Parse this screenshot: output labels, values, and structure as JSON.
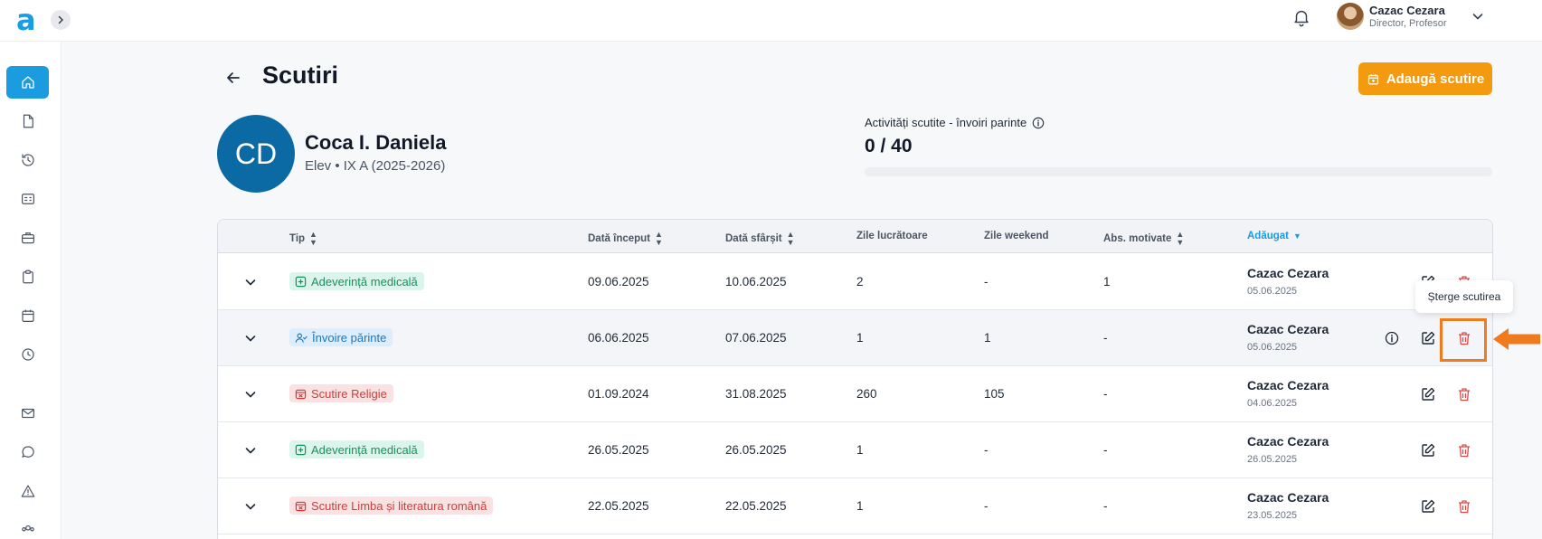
{
  "app": {
    "logo_text": "a"
  },
  "header": {
    "user_name": "Cazac Cezara",
    "user_role": "Director, Profesor"
  },
  "page": {
    "title": "Scutiri",
    "add_button_label": "Adaugă scutire"
  },
  "student": {
    "initials": "CD",
    "name": "Coca I. Daniela",
    "meta": "Elev • IX A (2025-2026)"
  },
  "quota": {
    "label": "Activități scutite - învoiri parinte",
    "value_text": "0 / 40",
    "fraction": 0
  },
  "table": {
    "columns": {
      "type": "Tip",
      "start": "Dată început",
      "end": "Dată sfârșit",
      "workdays": "Zile lucrătoare",
      "weekend": "Zile weekend",
      "motivated": "Abs. motivate",
      "added": "Adăugat"
    },
    "rows": [
      {
        "type": "Adeverință medicală",
        "type_color": "green",
        "start": "09.06.2025",
        "end": "10.06.2025",
        "workdays": "2",
        "weekend": "-",
        "motivated": "1",
        "added_by": "Cazac Cezara",
        "added_on": "05.06.2025"
      },
      {
        "type": "Învoire părinte",
        "type_color": "blue",
        "start": "06.06.2025",
        "end": "07.06.2025",
        "workdays": "1",
        "weekend": "1",
        "motivated": "-",
        "added_by": "Cazac Cezara",
        "added_on": "05.06.2025"
      },
      {
        "type": "Scutire Religie",
        "type_color": "red",
        "start": "01.09.2024",
        "end": "31.08.2025",
        "workdays": "260",
        "weekend": "105",
        "motivated": "-",
        "added_by": "Cazac Cezara",
        "added_on": "04.06.2025"
      },
      {
        "type": "Adeverință medicală",
        "type_color": "green",
        "start": "26.05.2025",
        "end": "26.05.2025",
        "workdays": "1",
        "weekend": "-",
        "motivated": "-",
        "added_by": "Cazac Cezara",
        "added_on": "26.05.2025"
      },
      {
        "type": "Scutire Limba și literatura română",
        "type_color": "red",
        "start": "22.05.2025",
        "end": "22.05.2025",
        "workdays": "1",
        "weekend": "-",
        "motivated": "-",
        "added_by": "Cazac Cezara",
        "added_on": "23.05.2025"
      }
    ]
  },
  "tooltip": {
    "text": "Șterge scutirea"
  },
  "colors": {
    "primary": "#1b9be0",
    "accent": "#f39a10",
    "highlight": "#f07a1e",
    "danger": "#e04848"
  }
}
